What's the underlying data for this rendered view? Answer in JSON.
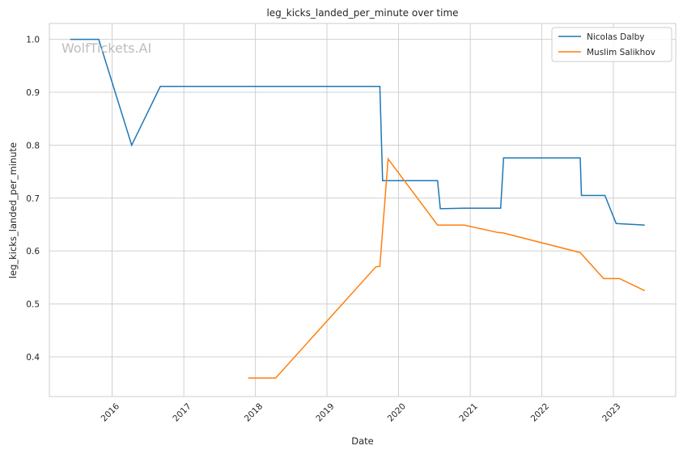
{
  "chart_data": {
    "type": "line",
    "title": "leg_kicks_landed_per_minute over time",
    "xlabel": "Date",
    "ylabel": "leg_kicks_landed_per_minute",
    "watermark": "WolfTickets.AI",
    "xlim": [
      "2015-02-15",
      "2023-11-15"
    ],
    "ylim": [
      0.325,
      1.03
    ],
    "x_ticks": [
      {
        "date": "2016-01-01",
        "label": "2016"
      },
      {
        "date": "2017-01-01",
        "label": "2017"
      },
      {
        "date": "2018-01-01",
        "label": "2018"
      },
      {
        "date": "2019-01-01",
        "label": "2019"
      },
      {
        "date": "2020-01-01",
        "label": "2020"
      },
      {
        "date": "2021-01-01",
        "label": "2021"
      },
      {
        "date": "2022-01-01",
        "label": "2022"
      },
      {
        "date": "2023-01-01",
        "label": "2023"
      }
    ],
    "y_ticks": [
      {
        "value": 0.4,
        "label": "0.4"
      },
      {
        "value": 0.5,
        "label": "0.5"
      },
      {
        "value": 0.6,
        "label": "0.6"
      },
      {
        "value": 0.7,
        "label": "0.7"
      },
      {
        "value": 0.8,
        "label": "0.8"
      },
      {
        "value": 0.9,
        "label": "0.9"
      },
      {
        "value": 1.0,
        "label": "1.0"
      }
    ],
    "grid": true,
    "legend_position": "top-right",
    "series": [
      {
        "name": "Nicolas Dalby",
        "color": "#1f77b4",
        "points": [
          {
            "x": "2015-06-01",
            "y": 1.0
          },
          {
            "x": "2015-10-25",
            "y": 1.0
          },
          {
            "x": "2016-04-10",
            "y": 0.8
          },
          {
            "x": "2016-09-03",
            "y": 0.911
          },
          {
            "x": "2019-09-28",
            "y": 0.911
          },
          {
            "x": "2019-10-12",
            "y": 0.733
          },
          {
            "x": "2020-07-18",
            "y": 0.733
          },
          {
            "x": "2020-08-01",
            "y": 0.68
          },
          {
            "x": "2020-12-01",
            "y": 0.681
          },
          {
            "x": "2021-06-05",
            "y": 0.681
          },
          {
            "x": "2021-06-20",
            "y": 0.776
          },
          {
            "x": "2022-07-16",
            "y": 0.776
          },
          {
            "x": "2022-07-22",
            "y": 0.705
          },
          {
            "x": "2022-11-19",
            "y": 0.705
          },
          {
            "x": "2023-01-15",
            "y": 0.652
          },
          {
            "x": "2023-06-10",
            "y": 0.649
          }
        ]
      },
      {
        "name": "Muslim Salikhov",
        "color": "#ff7f0e",
        "points": [
          {
            "x": "2017-11-25",
            "y": 0.36
          },
          {
            "x": "2018-04-14",
            "y": 0.36
          },
          {
            "x": "2019-09-07",
            "y": 0.57
          },
          {
            "x": "2019-09-28",
            "y": 0.571
          },
          {
            "x": "2019-11-09",
            "y": 0.774
          },
          {
            "x": "2020-07-18",
            "y": 0.649
          },
          {
            "x": "2020-12-01",
            "y": 0.649
          },
          {
            "x": "2021-05-22",
            "y": 0.635
          },
          {
            "x": "2021-06-19",
            "y": 0.634
          },
          {
            "x": "2022-07-16",
            "y": 0.597
          },
          {
            "x": "2022-11-12",
            "y": 0.548
          },
          {
            "x": "2023-02-01",
            "y": 0.548
          },
          {
            "x": "2023-06-10",
            "y": 0.525
          }
        ]
      }
    ]
  }
}
